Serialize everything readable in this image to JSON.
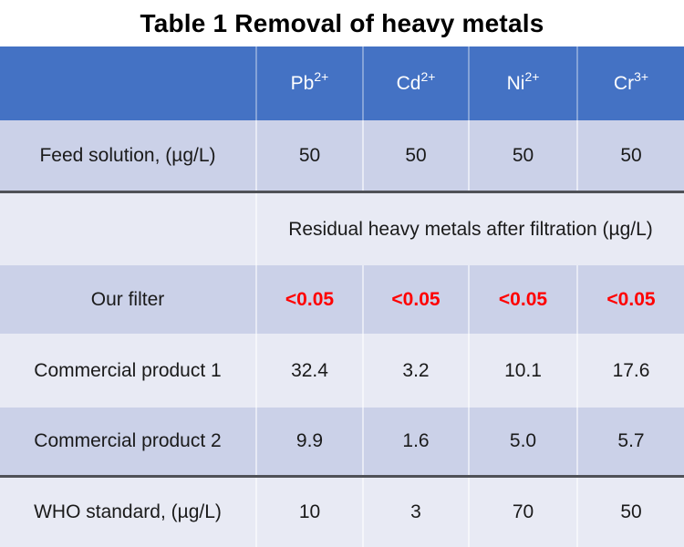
{
  "title": "Table 1 Removal of heavy metals",
  "colors": {
    "header_bg": "#4472C4",
    "header_text": "#FFFFFF",
    "band_dark": "#CBD1E8",
    "band_light": "#E8EAF4",
    "separator_rule": "#4F5157",
    "highlight_red": "#FF0000",
    "body_text": "#1A1A1A"
  },
  "table": {
    "columns": [
      {
        "base": "Pb",
        "sup": "2+"
      },
      {
        "base": "Cd",
        "sup": "2+"
      },
      {
        "base": "Ni",
        "sup": "2+"
      },
      {
        "base": "Cr",
        "sup": "3+"
      }
    ],
    "rows": [
      {
        "label": "Feed solution, (µg/L)",
        "values": [
          "50",
          "50",
          "50",
          "50"
        ]
      },
      {
        "span_label": "Residual heavy metals after filtration (µg/L)"
      },
      {
        "label": "Our filter",
        "values": [
          "<0.05",
          "<0.05",
          "<0.05",
          "<0.05"
        ]
      },
      {
        "label": "Commercial product 1",
        "values": [
          "32.4",
          "3.2",
          "10.1",
          "17.6"
        ]
      },
      {
        "label": "Commercial product 2",
        "values": [
          "9.9",
          "1.6",
          "5.0",
          "5.7"
        ]
      },
      {
        "label": "WHO standard, (µg/L)",
        "values": [
          "10",
          "3",
          "70",
          "50"
        ]
      }
    ]
  },
  "chart_data": {
    "type": "table",
    "title": "Table 1 Removal of heavy metals",
    "columns": [
      "",
      "Pb2+",
      "Cd2+",
      "Ni2+",
      "Cr3+"
    ],
    "section_header": "Residual heavy metals after filtration (µg/L)",
    "rows": [
      [
        "Feed solution, (µg/L)",
        "50",
        "50",
        "50",
        "50"
      ],
      [
        "Our filter",
        "<0.05",
        "<0.05",
        "<0.05",
        "<0.05"
      ],
      [
        "Commercial product 1",
        "32.4",
        "3.2",
        "10.1",
        "17.6"
      ],
      [
        "Commercial product 2",
        "9.9",
        "1.6",
        "5.0",
        "5.7"
      ],
      [
        "WHO standard, (µg/L)",
        "10",
        "3",
        "70",
        "50"
      ]
    ],
    "highlighted_row": "Our filter",
    "layout": {
      "banded_rows": true,
      "header_fill": "#4472C4",
      "rules_above": [
        "Residual heavy metals after filtration (µg/L)",
        "WHO standard, (µg/L)"
      ]
    }
  }
}
